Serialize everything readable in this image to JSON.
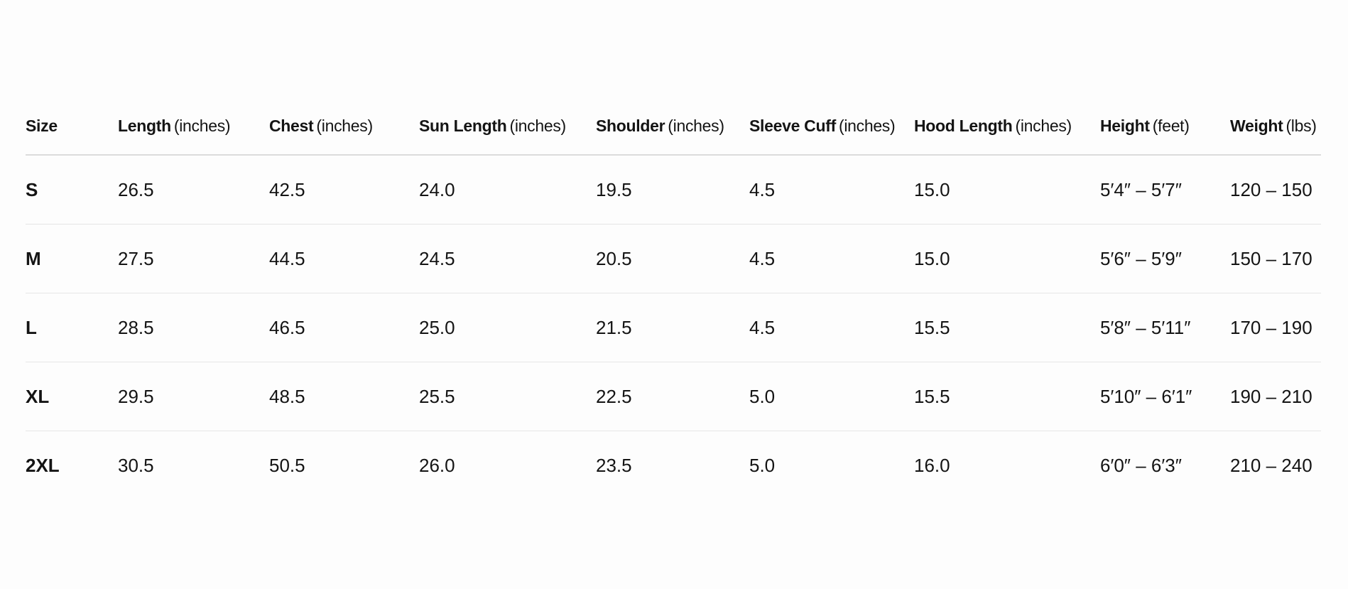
{
  "table": {
    "columns": [
      {
        "name": "Size",
        "unit": ""
      },
      {
        "name": "Length",
        "unit": "(inches)"
      },
      {
        "name": "Chest",
        "unit": "(inches)"
      },
      {
        "name": "Sun Length",
        "unit": "(inches)"
      },
      {
        "name": "Shoulder",
        "unit": "(inches)"
      },
      {
        "name": "Sleeve Cuff",
        "unit": "(inches)"
      },
      {
        "name": "Hood Length",
        "unit": "(inches)"
      },
      {
        "name": "Height",
        "unit": "(feet)"
      },
      {
        "name": "Weight",
        "unit": "(lbs)"
      }
    ],
    "rows": [
      [
        "S",
        "26.5",
        "42.5",
        "24.0",
        "19.5",
        "4.5",
        "15.0",
        "5′4″ – 5′7″",
        "120 – 150"
      ],
      [
        "M",
        "27.5",
        "44.5",
        "24.5",
        "20.5",
        "4.5",
        "15.0",
        "5′6″ – 5′9″",
        "150 – 170"
      ],
      [
        "L",
        "28.5",
        "46.5",
        "25.0",
        "21.5",
        "4.5",
        "15.5",
        "5′8″ – 5′11″",
        "170 – 190"
      ],
      [
        "XL",
        "29.5",
        "48.5",
        "25.5",
        "22.5",
        "5.0",
        "15.5",
        "5′10″ – 6′1″",
        "190 – 210"
      ],
      [
        "2XL",
        "30.5",
        "50.5",
        "26.0",
        "23.5",
        "5.0",
        "16.0",
        "6′0″ – 6′3″",
        "210 – 240"
      ]
    ]
  }
}
